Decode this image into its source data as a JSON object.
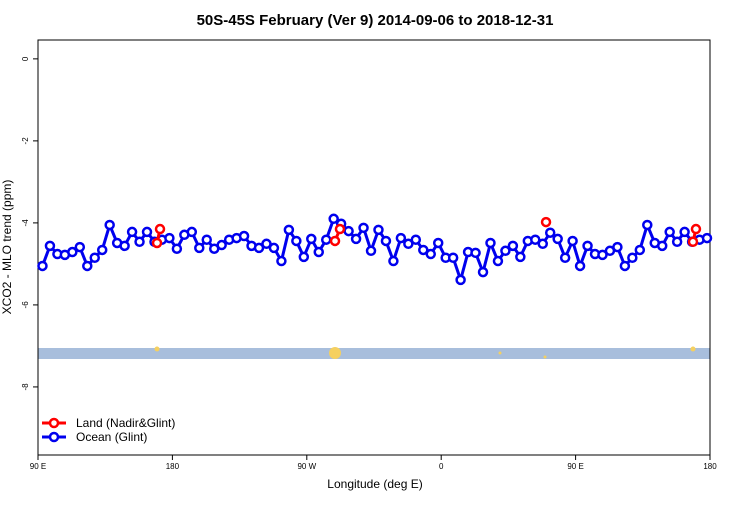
{
  "chart_data": {
    "type": "line",
    "title": "50S-45S February (Ver 9)   2014-09-06 to 2018-12-31",
    "xlabel": "Longitude (deg E)",
    "ylabel": "XCO2 - MLO trend (ppm)",
    "xlim": [
      90,
      540
    ],
    "ylim": [
      -9.66,
      0.46
    ],
    "xticks": [
      {
        "value": 90,
        "label": "90 E"
      },
      {
        "value": 180,
        "label": "180"
      },
      {
        "value": 270,
        "label": "90 W"
      },
      {
        "value": 360,
        "label": "0"
      },
      {
        "value": 450,
        "label": "90 E"
      },
      {
        "value": 540,
        "label": "180"
      }
    ],
    "yticks": [
      0,
      -2,
      -4,
      -6,
      -8
    ],
    "legend": "bottom-left",
    "series": [
      {
        "name": "Land (Nadir&Glint)",
        "color": "#ff0000",
        "x": [
          169.7,
          171.7,
          null,
          288.9,
          292.2,
          null,
          430.2,
          null,
          528.6,
          530.6
        ],
        "values": [
          -4.49,
          -4.15,
          null,
          -4.44,
          -4.15,
          null,
          -3.98,
          null,
          -4.46,
          -4.15
        ]
      },
      {
        "name": "Ocean (Glint)",
        "color": "#0000ee",
        "x": [
          93,
          98,
          103,
          108,
          113,
          118,
          123,
          128,
          133,
          138,
          143,
          148,
          153,
          158,
          163,
          168,
          173,
          178,
          183,
          188,
          193,
          198,
          203,
          208,
          213,
          218,
          223,
          228,
          233,
          238,
          243,
          248,
          253,
          258,
          263,
          268,
          273,
          278,
          283,
          288,
          293,
          298,
          303,
          308,
          313,
          318,
          323,
          328,
          333,
          338,
          343,
          348,
          353,
          358,
          363,
          368,
          373,
          378,
          383,
          388,
          393,
          398,
          403,
          408,
          413,
          418,
          423,
          428,
          433,
          438,
          443,
          448,
          453,
          458,
          463,
          468,
          473,
          478,
          483,
          488,
          493,
          498,
          503,
          508,
          513,
          518,
          523,
          528,
          533,
          538
        ],
        "values": [
          -5.05,
          -4.56,
          -4.76,
          -4.78,
          -4.71,
          -4.59,
          -5.05,
          -4.85,
          -4.66,
          -4.05,
          -4.49,
          -4.56,
          -4.22,
          -4.46,
          -4.22,
          -4.46,
          -4.41,
          -4.37,
          -4.63,
          -4.29,
          -4.22,
          -4.61,
          -4.41,
          -4.63,
          -4.54,
          -4.41,
          -4.37,
          -4.32,
          -4.56,
          -4.61,
          -4.51,
          -4.61,
          -4.93,
          -4.17,
          -4.44,
          -4.83,
          -4.39,
          -4.71,
          -4.41,
          -3.9,
          -4.02,
          -4.2,
          -4.39,
          -4.12,
          -4.68,
          -4.17,
          -4.44,
          -4.93,
          -4.37,
          -4.51,
          -4.41,
          -4.66,
          -4.76,
          -4.49,
          -4.85,
          -4.85,
          -5.39,
          -4.71,
          -4.73,
          -5.2,
          -4.49,
          -4.93,
          -4.68,
          -4.56,
          -4.83,
          -4.44,
          -4.41,
          -4.51,
          -4.24,
          -4.39,
          -4.85,
          -4.44,
          -5.05,
          -4.56,
          -4.76,
          -4.78,
          -4.68,
          -4.59,
          -5.05,
          -4.85,
          -4.66,
          -4.05,
          -4.49,
          -4.56,
          -4.22,
          -4.46,
          -4.22,
          -4.46,
          -4.41,
          -4.37
        ]
      }
    ]
  }
}
